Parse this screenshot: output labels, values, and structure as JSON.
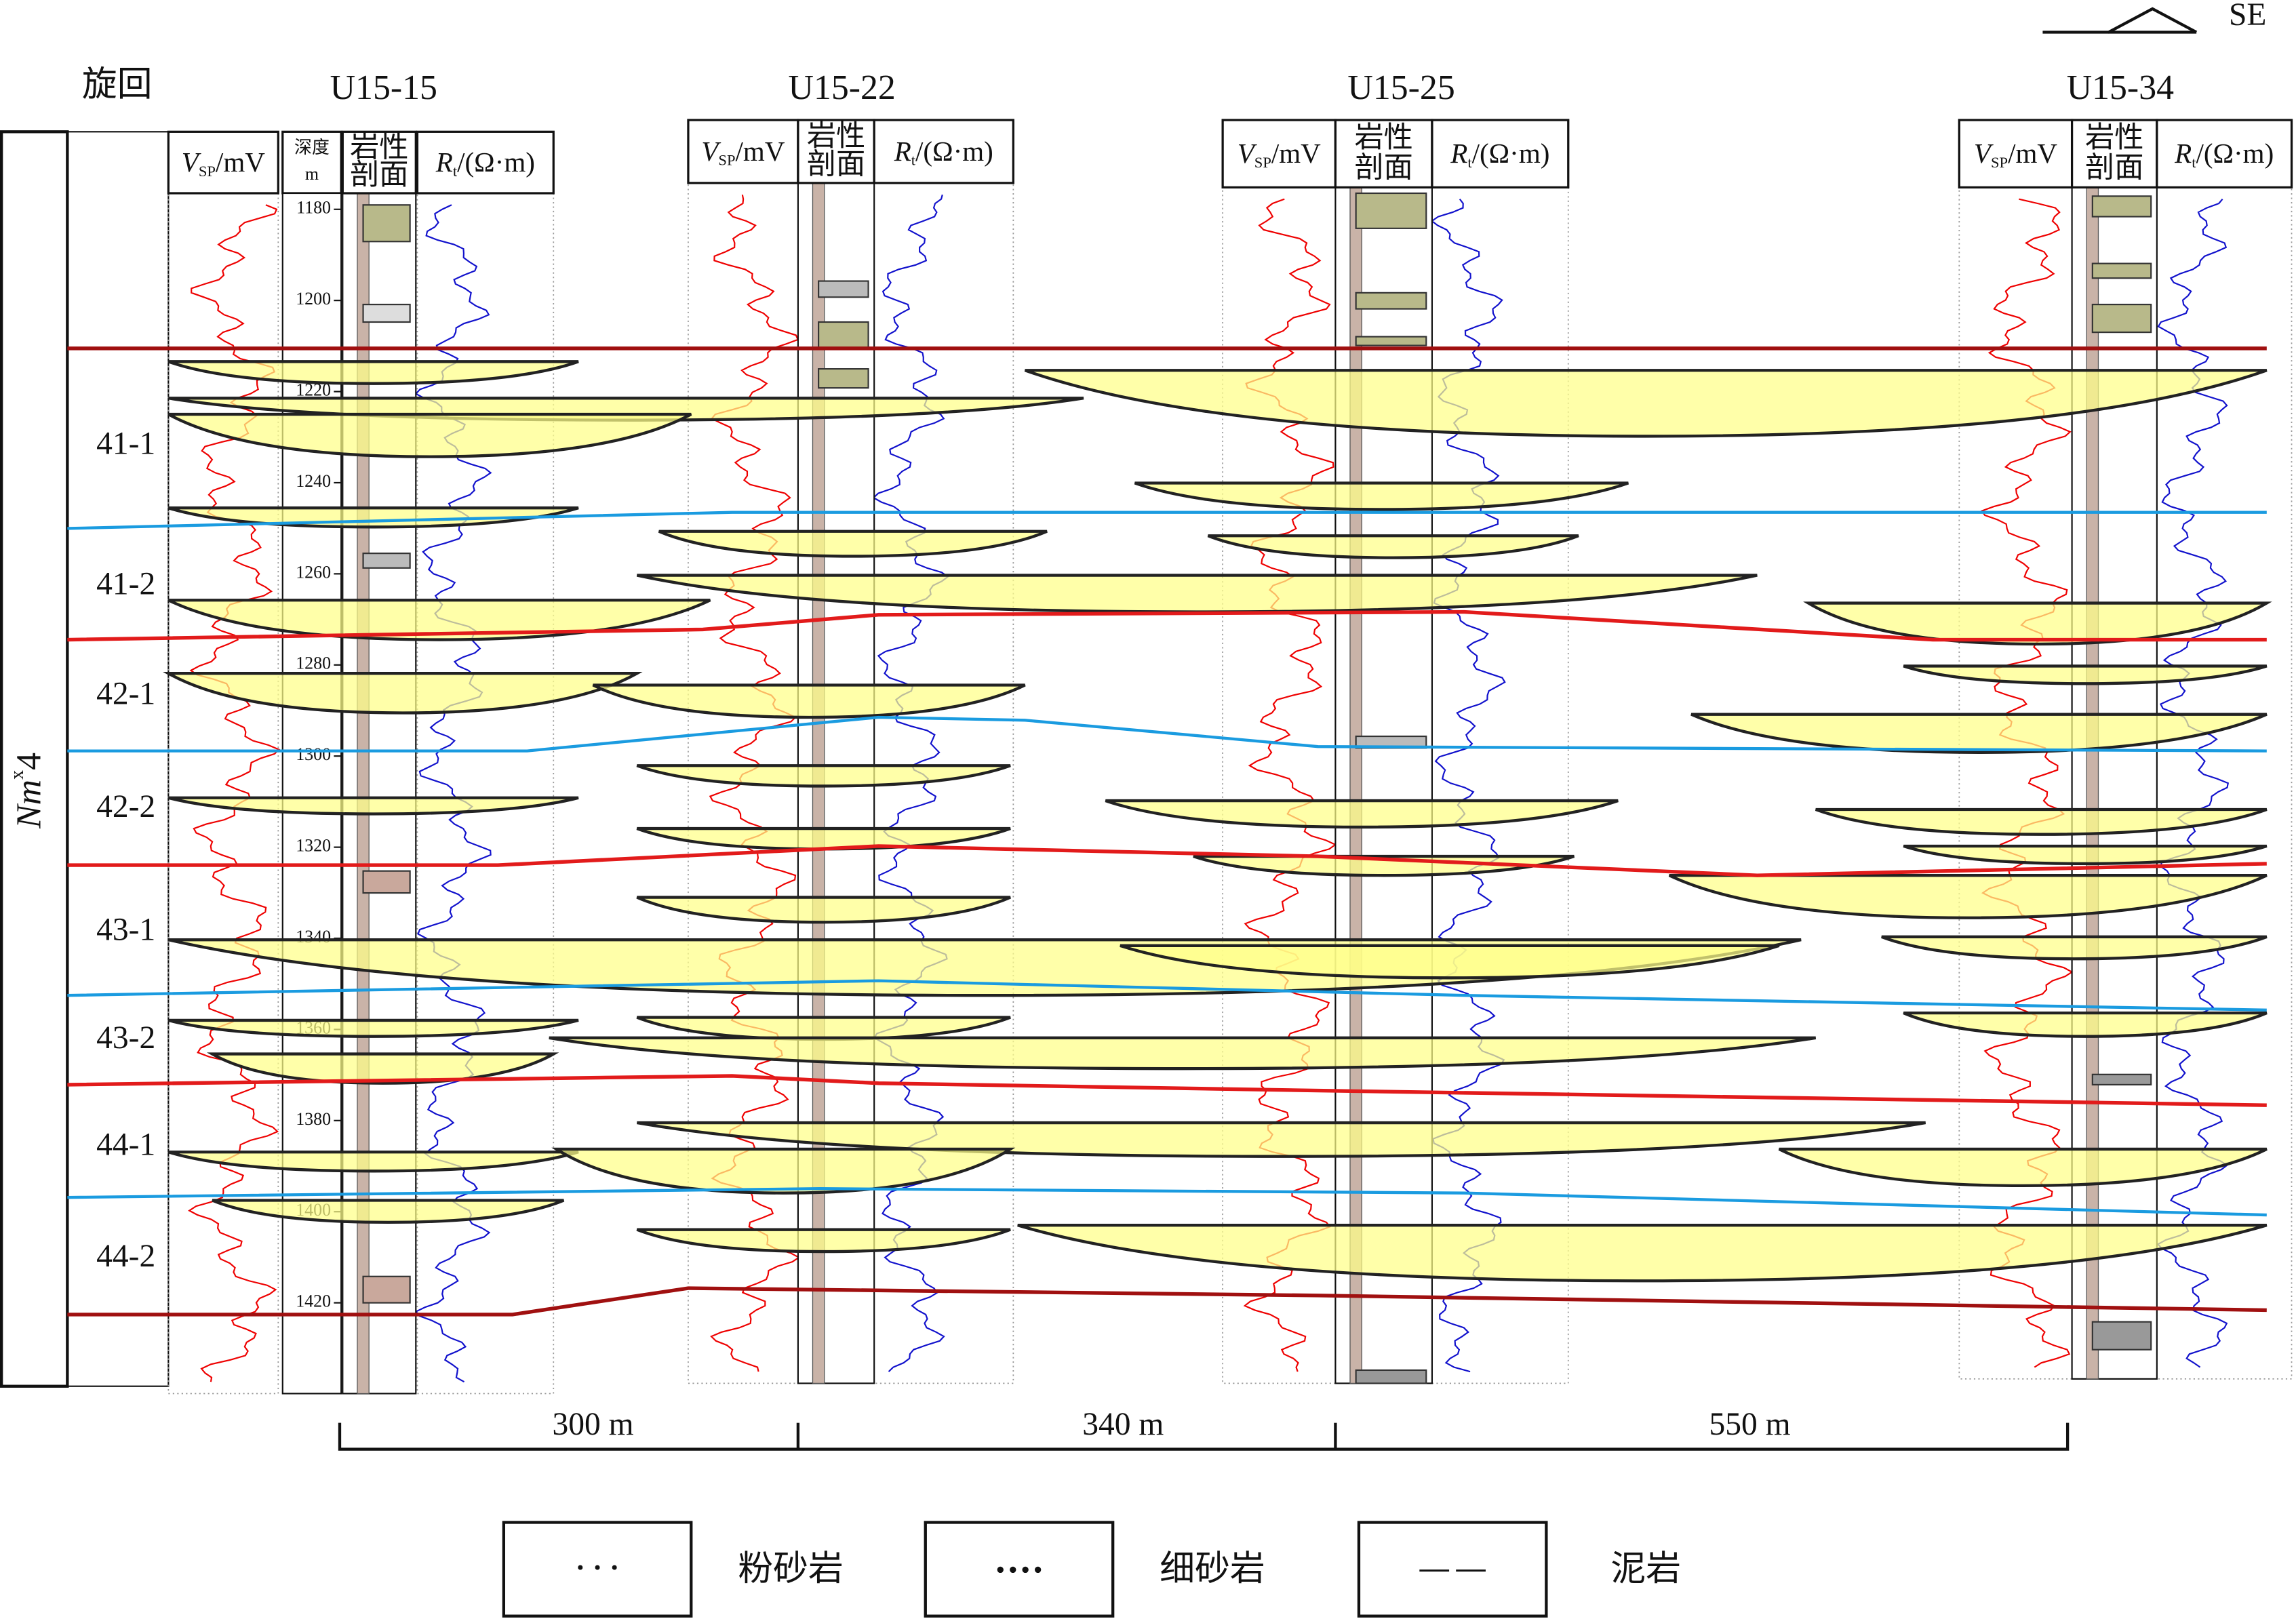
{
  "direction": "SE",
  "cycle_header": "旋回",
  "formation": {
    "base": "Nm",
    "sup": "x",
    "tail": "4"
  },
  "cycles": [
    "41-1",
    "41-2",
    "42-1",
    "42-2",
    "43-1",
    "43-2",
    "44-1",
    "44-2"
  ],
  "depth_track": {
    "header": [
      "深度",
      "m"
    ],
    "ticks": [
      1180,
      1200,
      1220,
      1240,
      1260,
      1280,
      1300,
      1320,
      1340,
      1360,
      1380,
      1400,
      1420
    ]
  },
  "wells": [
    {
      "name": "U15-15",
      "sp": {
        "symbol": "V",
        "sub": "SP",
        "unit": "/mV"
      },
      "lith": [
        "岩性",
        "剖面"
      ],
      "rt": {
        "symbol": "R",
        "sub": "t",
        "unit": "/(Ω·m)"
      }
    },
    {
      "name": "U15-22",
      "sp": {
        "symbol": "V",
        "sub": "SP",
        "unit": "/mV"
      },
      "lith": [
        "岩性",
        "剖面"
      ],
      "rt": {
        "symbol": "R",
        "sub": "t",
        "unit": "/(Ω·m)"
      }
    },
    {
      "name": "U15-25",
      "sp": {
        "symbol": "V",
        "sub": "SP",
        "unit": "/mV"
      },
      "lith": [
        "岩性",
        "剖面"
      ],
      "rt": {
        "symbol": "R",
        "sub": "t",
        "unit": "/(Ω·m)"
      }
    },
    {
      "name": "U15-34",
      "sp": {
        "symbol": "V",
        "sub": "SP",
        "unit": "/mV"
      },
      "lith": [
        "岩性",
        "剖面"
      ],
      "rt": {
        "symbol": "R",
        "sub": "t",
        "unit": "/(Ω·m)"
      }
    }
  ],
  "distances": [
    "300 m",
    "340 m",
    "550 m"
  ],
  "legend": [
    "粉砂岩",
    "细砂岩",
    "泥岩"
  ]
}
